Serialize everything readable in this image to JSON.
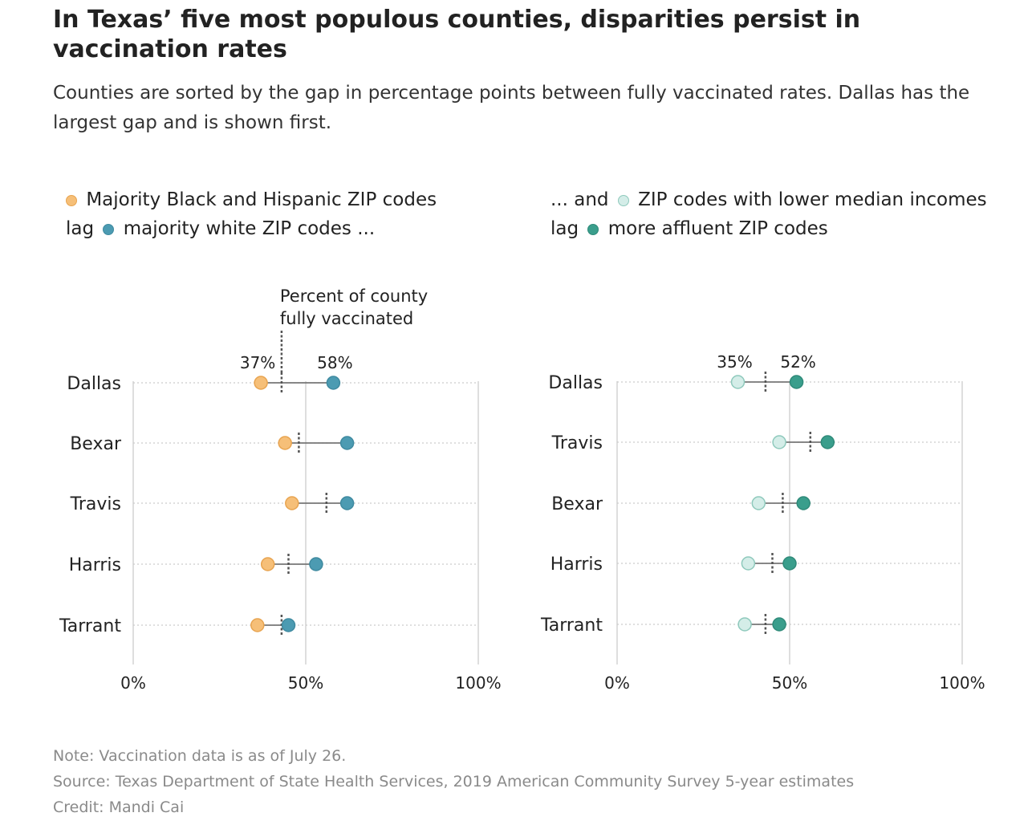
{
  "title": "In Texas’ five most populous counties, disparities persist in vaccination rates",
  "subtitle": "Counties are sorted by the gap in percentage points between fully vaccinated rates. Dallas has the largest gap and is shown first.",
  "legend": {
    "left": {
      "line1_text": "Majority Black and Hispanic ZIP codes",
      "line2_prefix": "lag",
      "line2_text": "majority white ZIP codes ..."
    },
    "right": {
      "line1_prefix": "... and",
      "line1_text": "ZIP codes with lower median incomes",
      "line2_prefix": "lag",
      "line2_text": "more affluent ZIP codes"
    }
  },
  "colors": {
    "minority": "#f6bf78",
    "minority_stroke": "#e8a450",
    "white": "#4c9bb2",
    "white_stroke": "#3f8aa0",
    "low_income": "#d4ede8",
    "low_income_stroke": "#8ec9bc",
    "affluent": "#3a9e8c",
    "affluent_stroke": "#2f8a79",
    "connector": "#777777",
    "county_marker": "#555555",
    "grid": "#cccccc",
    "dotted_grid": "#cccccc"
  },
  "chart_data": [
    {
      "type": "dumbbell",
      "x_axis": {
        "min": 0,
        "max": 100,
        "ticks": [
          0,
          50,
          100
        ],
        "tick_labels": [
          "0%",
          "50%",
          "100%"
        ]
      },
      "annotation": [
        "Percent of county",
        "fully vaccinated"
      ],
      "series": [
        {
          "name": "Majority Black and Hispanic ZIP codes",
          "color_key": "minority"
        },
        {
          "name": "majority white ZIP codes",
          "color_key": "white"
        }
      ],
      "rows": [
        {
          "county": "Dallas",
          "low": 37,
          "high": 58,
          "county_rate": 43,
          "low_label": "37%",
          "high_label": "58%"
        },
        {
          "county": "Bexar",
          "low": 44,
          "high": 62,
          "county_rate": 48
        },
        {
          "county": "Travis",
          "low": 46,
          "high": 62,
          "county_rate": 56
        },
        {
          "county": "Harris",
          "low": 39,
          "high": 53,
          "county_rate": 45
        },
        {
          "county": "Tarrant",
          "low": 36,
          "high": 45,
          "county_rate": 43
        }
      ]
    },
    {
      "type": "dumbbell",
      "x_axis": {
        "min": 0,
        "max": 100,
        "ticks": [
          0,
          50,
          100
        ],
        "tick_labels": [
          "0%",
          "50%",
          "100%"
        ]
      },
      "series": [
        {
          "name": "ZIP codes with lower median incomes",
          "color_key": "low_income"
        },
        {
          "name": "more affluent ZIP codes",
          "color_key": "affluent"
        }
      ],
      "rows": [
        {
          "county": "Dallas",
          "low": 35,
          "high": 52,
          "county_rate": 43,
          "low_label": "35%",
          "high_label": "52%"
        },
        {
          "county": "Travis",
          "low": 47,
          "high": 61,
          "county_rate": 56
        },
        {
          "county": "Bexar",
          "low": 41,
          "high": 54,
          "county_rate": 48
        },
        {
          "county": "Harris",
          "low": 38,
          "high": 50,
          "county_rate": 45
        },
        {
          "county": "Tarrant",
          "low": 37,
          "high": 47,
          "county_rate": 43
        }
      ]
    }
  ],
  "notes": {
    "note": "Note: Vaccination data is as of July 26.",
    "source": "Source: Texas Department of State Health Services, 2019 American Community Survey 5-year estimates",
    "credit": "Credit: Mandi Cai"
  }
}
